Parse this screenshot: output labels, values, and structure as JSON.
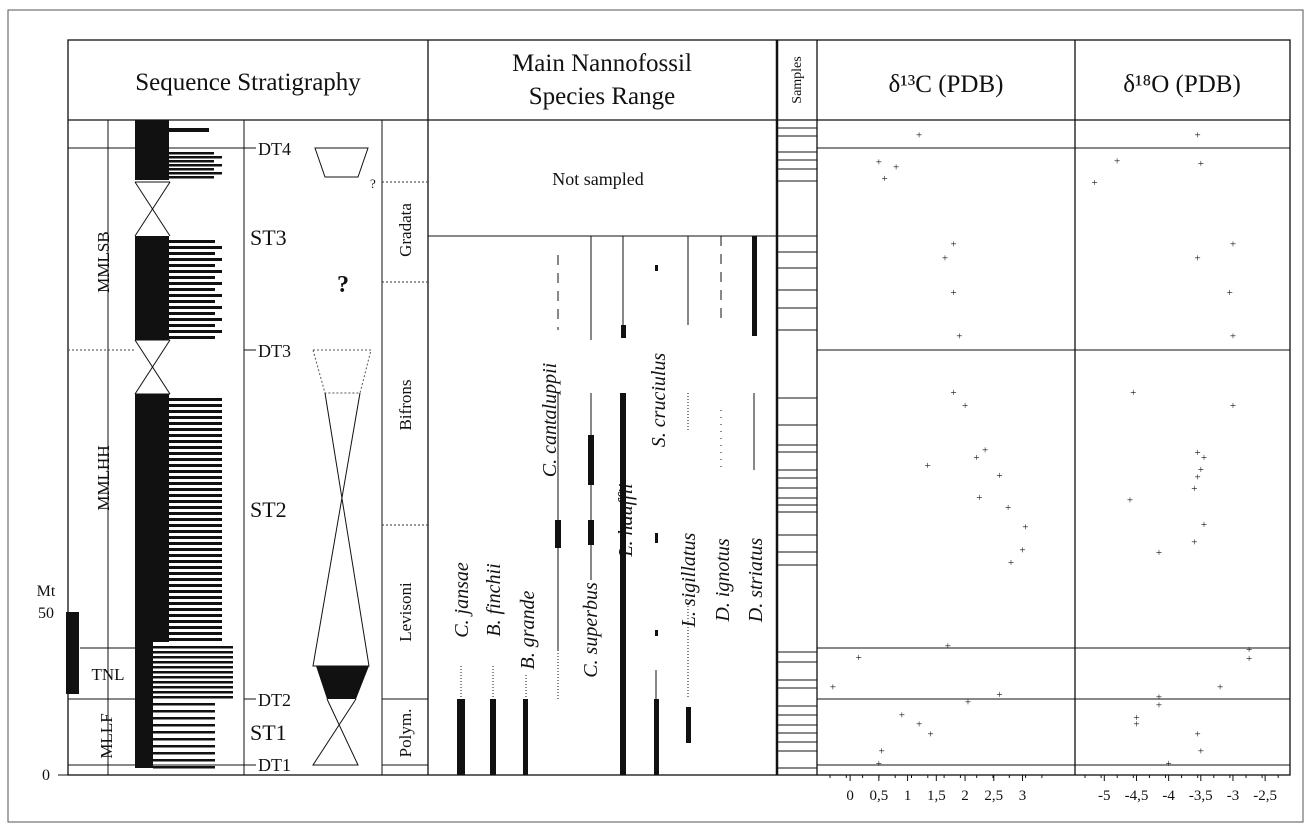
{
  "headers": {
    "sequence": "Sequence Stratigraphy",
    "nanno_line1": "Main Nannofossil",
    "nanno_line2": "Species Range",
    "samples": "Samples",
    "d13c": "δ¹³C (PDB)",
    "d18o": "δ¹⁸O (PDB)"
  },
  "scale": {
    "unit": "Mt",
    "ticks": [
      "50",
      "0"
    ]
  },
  "units": [
    "MMLSB",
    "MMLHH",
    "TNL",
    "MLLF"
  ],
  "discontinuities": [
    "DT4",
    "DT3",
    "DT2",
    "DT1"
  ],
  "sequences": [
    "ST3",
    "ST2",
    "ST1"
  ],
  "unknown_mark": "?",
  "zones": [
    "Gradata",
    "Bifrons",
    "Levisoni",
    "Polym."
  ],
  "zone_query": "?",
  "not_sampled": "Not sampled",
  "species": [
    "C. jansae",
    "B. finchii",
    "B. grande",
    "C. cantaluppii",
    "C. superbus",
    "L. hauffii",
    "S. cruciulus",
    "L. sigillatus",
    "D. ignotus",
    "D. striatus"
  ],
  "axes": {
    "d13c_ticks": [
      "0",
      "0,5",
      "1",
      "1,5",
      "2",
      "2,5",
      "3"
    ],
    "d18o_ticks": [
      "-5",
      "-4,5",
      "-4",
      "-3,5",
      "-3",
      "-2,5"
    ]
  },
  "chart_data": {
    "type": "scatter",
    "series": [
      {
        "name": "δ13C (PDB)",
        "points": [
          [
            0.5,
            0.6
          ],
          [
            0.55,
            2.6
          ],
          [
            1.4,
            5.2
          ],
          [
            1.2,
            6.8
          ],
          [
            0.9,
            8.2
          ],
          [
            2.05,
            10.2
          ],
          [
            2.6,
            11.4
          ],
          [
            -0.3,
            12.6
          ],
          [
            0.15,
            17.2
          ],
          [
            1.7,
            19.0
          ],
          [
            2.8,
            32.0
          ],
          [
            3.0,
            34.0
          ],
          [
            3.05,
            37.6
          ],
          [
            2.75,
            40.6
          ],
          [
            2.6,
            45.6
          ],
          [
            2.25,
            42.2
          ],
          [
            1.35,
            47.2
          ],
          [
            2.2,
            48.4
          ],
          [
            2.35,
            49.6
          ],
          [
            2.0,
            56.6
          ],
          [
            1.8,
            58.6
          ],
          [
            1.9,
            67.4
          ],
          [
            1.8,
            74.2
          ],
          [
            1.65,
            79.6
          ],
          [
            1.8,
            81.8
          ],
          [
            0.6,
            92.0
          ],
          [
            0.8,
            93.8
          ],
          [
            0.5,
            94.6
          ],
          [
            1.2,
            98.8
          ]
        ]
      },
      {
        "name": "δ18O (PDB)",
        "points": [
          [
            -4.0,
            0.6
          ],
          [
            -3.5,
            2.6
          ],
          [
            -3.55,
            5.2
          ],
          [
            -4.5,
            6.8
          ],
          [
            -4.5,
            7.8
          ],
          [
            -4.15,
            9.8
          ],
          [
            -4.15,
            11.0
          ],
          [
            -3.2,
            12.6
          ],
          [
            -2.75,
            17.0
          ],
          [
            -2.75,
            18.4
          ],
          [
            -4.15,
            33.6
          ],
          [
            -3.6,
            35.2
          ],
          [
            -3.45,
            38.0
          ],
          [
            -4.6,
            41.8
          ],
          [
            -3.6,
            43.6
          ],
          [
            -3.55,
            45.4
          ],
          [
            -3.5,
            46.6
          ],
          [
            -3.45,
            48.4
          ],
          [
            -3.55,
            49.2
          ],
          [
            -3.0,
            56.6
          ],
          [
            -4.55,
            58.6
          ],
          [
            -3.0,
            67.4
          ],
          [
            -3.05,
            74.2
          ],
          [
            -3.55,
            79.6
          ],
          [
            -3.0,
            81.8
          ],
          [
            -5.15,
            91.4
          ],
          [
            -4.8,
            94.8
          ],
          [
            -3.5,
            94.4
          ],
          [
            -3.55,
            98.8
          ]
        ]
      }
    ],
    "d13c_range": [
      -0.35,
      3.6
    ],
    "d18o_range": [
      -5.3,
      -2.3
    ]
  }
}
